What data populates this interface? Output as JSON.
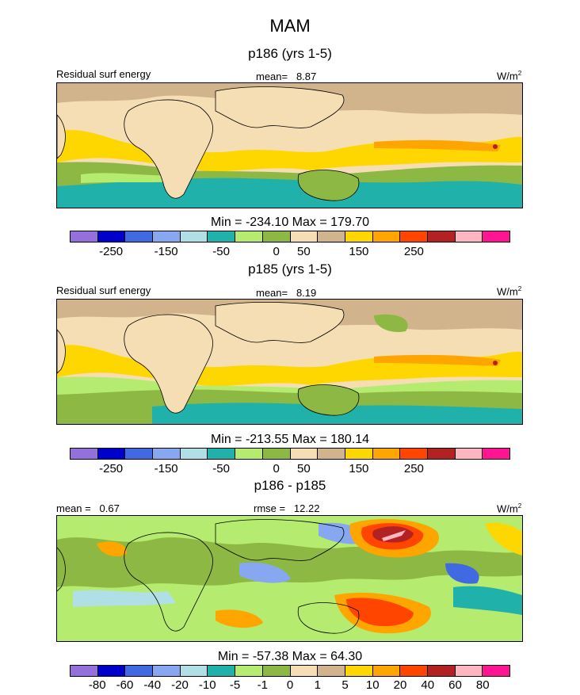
{
  "figure": {
    "title": "MAM"
  },
  "colors": {
    "topo": [
      "#9370DB",
      "#0000CD",
      "#4169E1",
      "#87A8F0",
      "#B0E0E6",
      "#20B2AA",
      "#B5EB6E",
      "#8DB843",
      "#F5DEB3",
      "#D2B48C",
      "#FFD700",
      "#FFA500",
      "#FF4500",
      "#B22222",
      "#FFB6C1",
      "#FF1493"
    ],
    "diff": [
      "#9370DB",
      "#0000CD",
      "#4169E1",
      "#87A8F0",
      "#B0E0E6",
      "#20B2AA",
      "#B5EB6E",
      "#8DB843",
      "#F5DEB3",
      "#D2B48C",
      "#FFD700",
      "#FFA500",
      "#FF4500",
      "#B22222",
      "#FFB6C1",
      "#FF1493"
    ],
    "land": "#F5DEB3"
  },
  "chart_data": [
    {
      "type": "heatmap",
      "title": "p186 (yrs 1-5)",
      "left_label": "Residual surf energy",
      "center_label": "mean=   8.87",
      "right_label": "W/m",
      "right_label_sup": "2",
      "minmax": "Min = -234.10 Max = 179.70",
      "colorbar_ticks": [
        "-250",
        "-150",
        "-50",
        "0",
        "50",
        "150",
        "250"
      ],
      "colorbar_tick_positions": [
        1.5,
        3.5,
        5.5,
        7.5,
        8.5,
        10.5,
        12.5
      ],
      "levels": [
        -300,
        -250,
        -200,
        -150,
        -100,
        -50,
        -25,
        0,
        25,
        50,
        100,
        150,
        200,
        250,
        300
      ],
      "mean": 8.87,
      "min": -234.1,
      "max": 179.7
    },
    {
      "type": "heatmap",
      "title": "p185 (yrs 1-5)",
      "left_label": "Residual surf energy",
      "center_label": "mean=   8.19",
      "right_label": "W/m",
      "right_label_sup": "2",
      "minmax": "Min = -213.55 Max = 180.14",
      "colorbar_ticks": [
        "-250",
        "-150",
        "-50",
        "0",
        "50",
        "150",
        "250"
      ],
      "colorbar_tick_positions": [
        1.5,
        3.5,
        5.5,
        7.5,
        8.5,
        10.5,
        12.5
      ],
      "levels": [
        -300,
        -250,
        -200,
        -150,
        -100,
        -50,
        -25,
        0,
        25,
        50,
        100,
        150,
        200,
        250,
        300
      ],
      "mean": 8.19,
      "min": -213.55,
      "max": 180.14
    },
    {
      "type": "heatmap",
      "title": "p186 - p185",
      "left_label": "mean =   0.67",
      "center_label": "rmse =   12.22",
      "right_label": "W/m",
      "right_label_sup": "2",
      "minmax": "Min = -57.38 Max = 64.30",
      "colorbar_ticks": [
        "-80",
        "-60",
        "-40",
        "-20",
        "-10",
        "-5",
        "-1",
        "0",
        "1",
        "5",
        "10",
        "20",
        "40",
        "60",
        "80"
      ],
      "colorbar_tick_positions": [
        1,
        2,
        3,
        4,
        5,
        6,
        7,
        8,
        9,
        10,
        11,
        12,
        13,
        14,
        15
      ],
      "levels": [
        -80,
        -60,
        -40,
        -20,
        -10,
        -5,
        -1,
        0,
        1,
        5,
        10,
        20,
        40,
        60,
        80
      ],
      "mean": 0.67,
      "rmse": 12.22,
      "min": -57.38,
      "max": 64.3
    }
  ]
}
